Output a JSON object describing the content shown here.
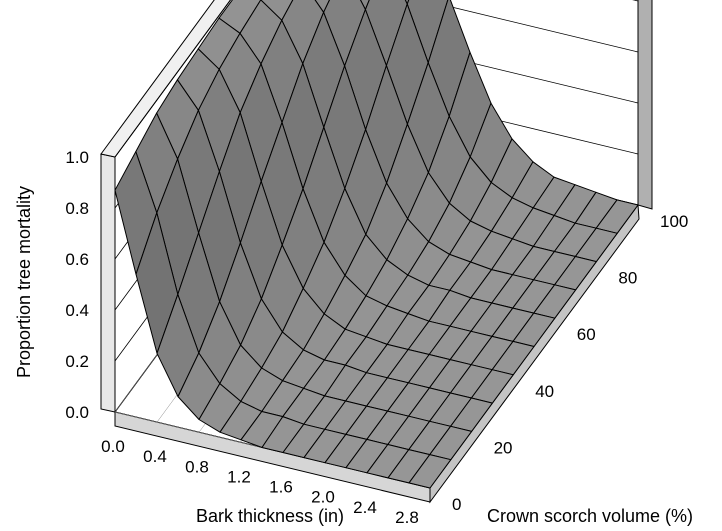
{
  "chart_data": {
    "type": "surface",
    "ylabel": "Proportion tree mortality",
    "xlabel": "Bark thickness (in)",
    "zlabel": "Crown scorch volume (%)",
    "y_ticks": [
      "0.0",
      "0.2",
      "0.4",
      "0.6",
      "0.8",
      "1.0"
    ],
    "x_ticks": [
      "0.0",
      "0.4",
      "0.8",
      "1.2",
      "1.6",
      "2.0",
      "2.4",
      "2.8"
    ],
    "z_ticks": [
      "0",
      "20",
      "40",
      "60",
      "80",
      "100"
    ],
    "ylim": [
      0,
      1
    ],
    "xlim": [
      0,
      3
    ],
    "zlim": [
      0,
      100
    ],
    "x": [
      0.0,
      0.2,
      0.4,
      0.6,
      0.8,
      1.0,
      1.2,
      1.4,
      1.6,
      1.8,
      2.0,
      2.2,
      2.4,
      2.6,
      2.8,
      3.0
    ],
    "z": [
      0,
      10,
      20,
      30,
      40,
      50,
      60,
      70,
      80,
      90,
      100
    ],
    "values": [
      [
        0.87,
        0.56,
        0.27,
        0.12,
        0.05,
        0.02,
        0.01,
        0.0,
        0.0,
        0.0,
        0.0,
        0.0,
        0.0,
        0.0,
        0.0,
        0.0
      ],
      [
        0.91,
        0.69,
        0.39,
        0.18,
        0.08,
        0.03,
        0.01,
        0.01,
        0.0,
        0.0,
        0.0,
        0.0,
        0.0,
        0.0,
        0.0,
        0.0
      ],
      [
        0.95,
        0.79,
        0.52,
        0.27,
        0.12,
        0.05,
        0.02,
        0.01,
        0.0,
        0.0,
        0.0,
        0.0,
        0.0,
        0.0,
        0.0,
        0.0
      ],
      [
        0.97,
        0.87,
        0.65,
        0.39,
        0.19,
        0.08,
        0.03,
        0.01,
        0.01,
        0.0,
        0.0,
        0.0,
        0.0,
        0.0,
        0.0,
        0.0
      ],
      [
        0.98,
        0.92,
        0.77,
        0.52,
        0.29,
        0.14,
        0.06,
        0.02,
        0.01,
        0.0,
        0.0,
        0.0,
        0.0,
        0.0,
        0.0,
        0.0
      ],
      [
        0.99,
        0.95,
        0.85,
        0.64,
        0.4,
        0.21,
        0.1,
        0.04,
        0.02,
        0.01,
        0.0,
        0.0,
        0.0,
        0.0,
        0.0,
        0.0
      ],
      [
        0.99,
        0.97,
        0.91,
        0.76,
        0.53,
        0.31,
        0.15,
        0.07,
        0.03,
        0.01,
        0.01,
        0.0,
        0.0,
        0.0,
        0.0,
        0.0
      ],
      [
        0.99,
        0.98,
        0.95,
        0.85,
        0.66,
        0.43,
        0.24,
        0.12,
        0.05,
        0.02,
        0.01,
        0.0,
        0.0,
        0.0,
        0.0,
        0.0
      ],
      [
        1.0,
        0.99,
        0.97,
        0.91,
        0.77,
        0.57,
        0.36,
        0.19,
        0.09,
        0.04,
        0.02,
        0.01,
        0.0,
        0.0,
        0.0,
        0.0
      ],
      [
        1.0,
        0.99,
        0.98,
        0.95,
        0.86,
        0.7,
        0.49,
        0.3,
        0.16,
        0.08,
        0.04,
        0.02,
        0.01,
        0.0,
        0.0,
        0.0
      ],
      [
        1.0,
        1.0,
        0.99,
        0.97,
        0.92,
        0.81,
        0.64,
        0.44,
        0.26,
        0.14,
        0.07,
        0.03,
        0.02,
        0.01,
        0.0,
        0.0
      ]
    ],
    "grid": true
  }
}
